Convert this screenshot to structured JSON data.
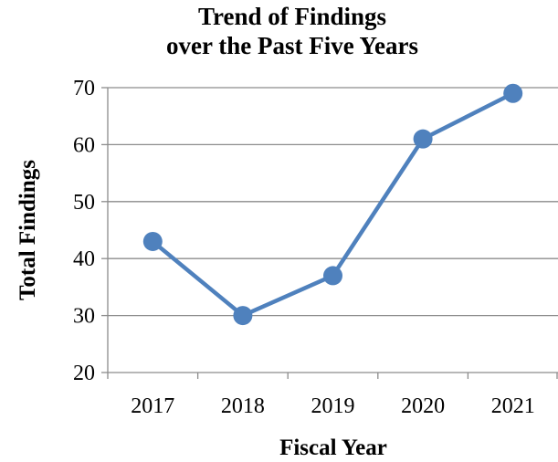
{
  "chart_data": {
    "type": "line",
    "title": "Trend of Findings over the Past Five Years",
    "title_lines": [
      "Trend of Findings",
      "over the Past Five Years"
    ],
    "xlabel": "Fiscal Year",
    "ylabel": "Total Findings",
    "categories": [
      "2017",
      "2018",
      "2019",
      "2020",
      "2021"
    ],
    "values": [
      43,
      30,
      37,
      61,
      69
    ],
    "ylim": [
      20,
      70
    ],
    "yticks": [
      20,
      30,
      40,
      50,
      60,
      70
    ],
    "grid": true,
    "legend": "none",
    "color": "#4F81BD"
  }
}
